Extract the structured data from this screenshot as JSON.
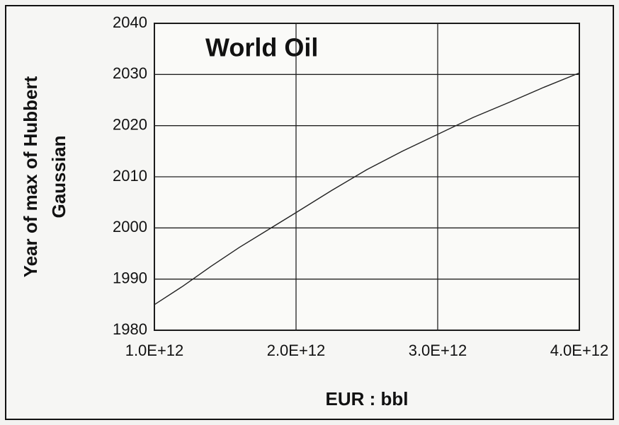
{
  "chart_data": {
    "type": "line",
    "title": "World Oil",
    "xlabel": "EUR : bbl",
    "ylabel": [
      "Year of max of Hubbert",
      "Gaussian"
    ],
    "x": [
      1000000000000.0,
      1200000000000.0,
      1400000000000.0,
      1600000000000.0,
      1800000000000.0,
      2000000000000.0,
      2250000000000.0,
      2500000000000.0,
      2750000000000.0,
      3000000000000.0,
      3250000000000.0,
      3500000000000.0,
      3750000000000.0,
      4000000000000.0
    ],
    "series": [
      {
        "name": "World Oil",
        "color": "#222222",
        "values": [
          1985,
          1988.6,
          1992.5,
          1996.2,
          1999.6,
          2003,
          2007.3,
          2011.4,
          2015,
          2018.3,
          2021.6,
          2024.5,
          2027.5,
          2030.3
        ]
      }
    ],
    "xlim": [
      1000000000000.0,
      4000000000000.0
    ],
    "xticks": [
      {
        "value": 1000000000000.0,
        "label": "1.0E+12"
      },
      {
        "value": 2000000000000.0,
        "label": "2.0E+12"
      },
      {
        "value": 3000000000000.0,
        "label": "3.0E+12"
      },
      {
        "value": 4000000000000.0,
        "label": "4.0E+12"
      }
    ],
    "ylim": [
      1980,
      2040
    ],
    "yticks": [
      1980,
      1990,
      2000,
      2010,
      2020,
      2030,
      2040
    ],
    "grid": true
  }
}
